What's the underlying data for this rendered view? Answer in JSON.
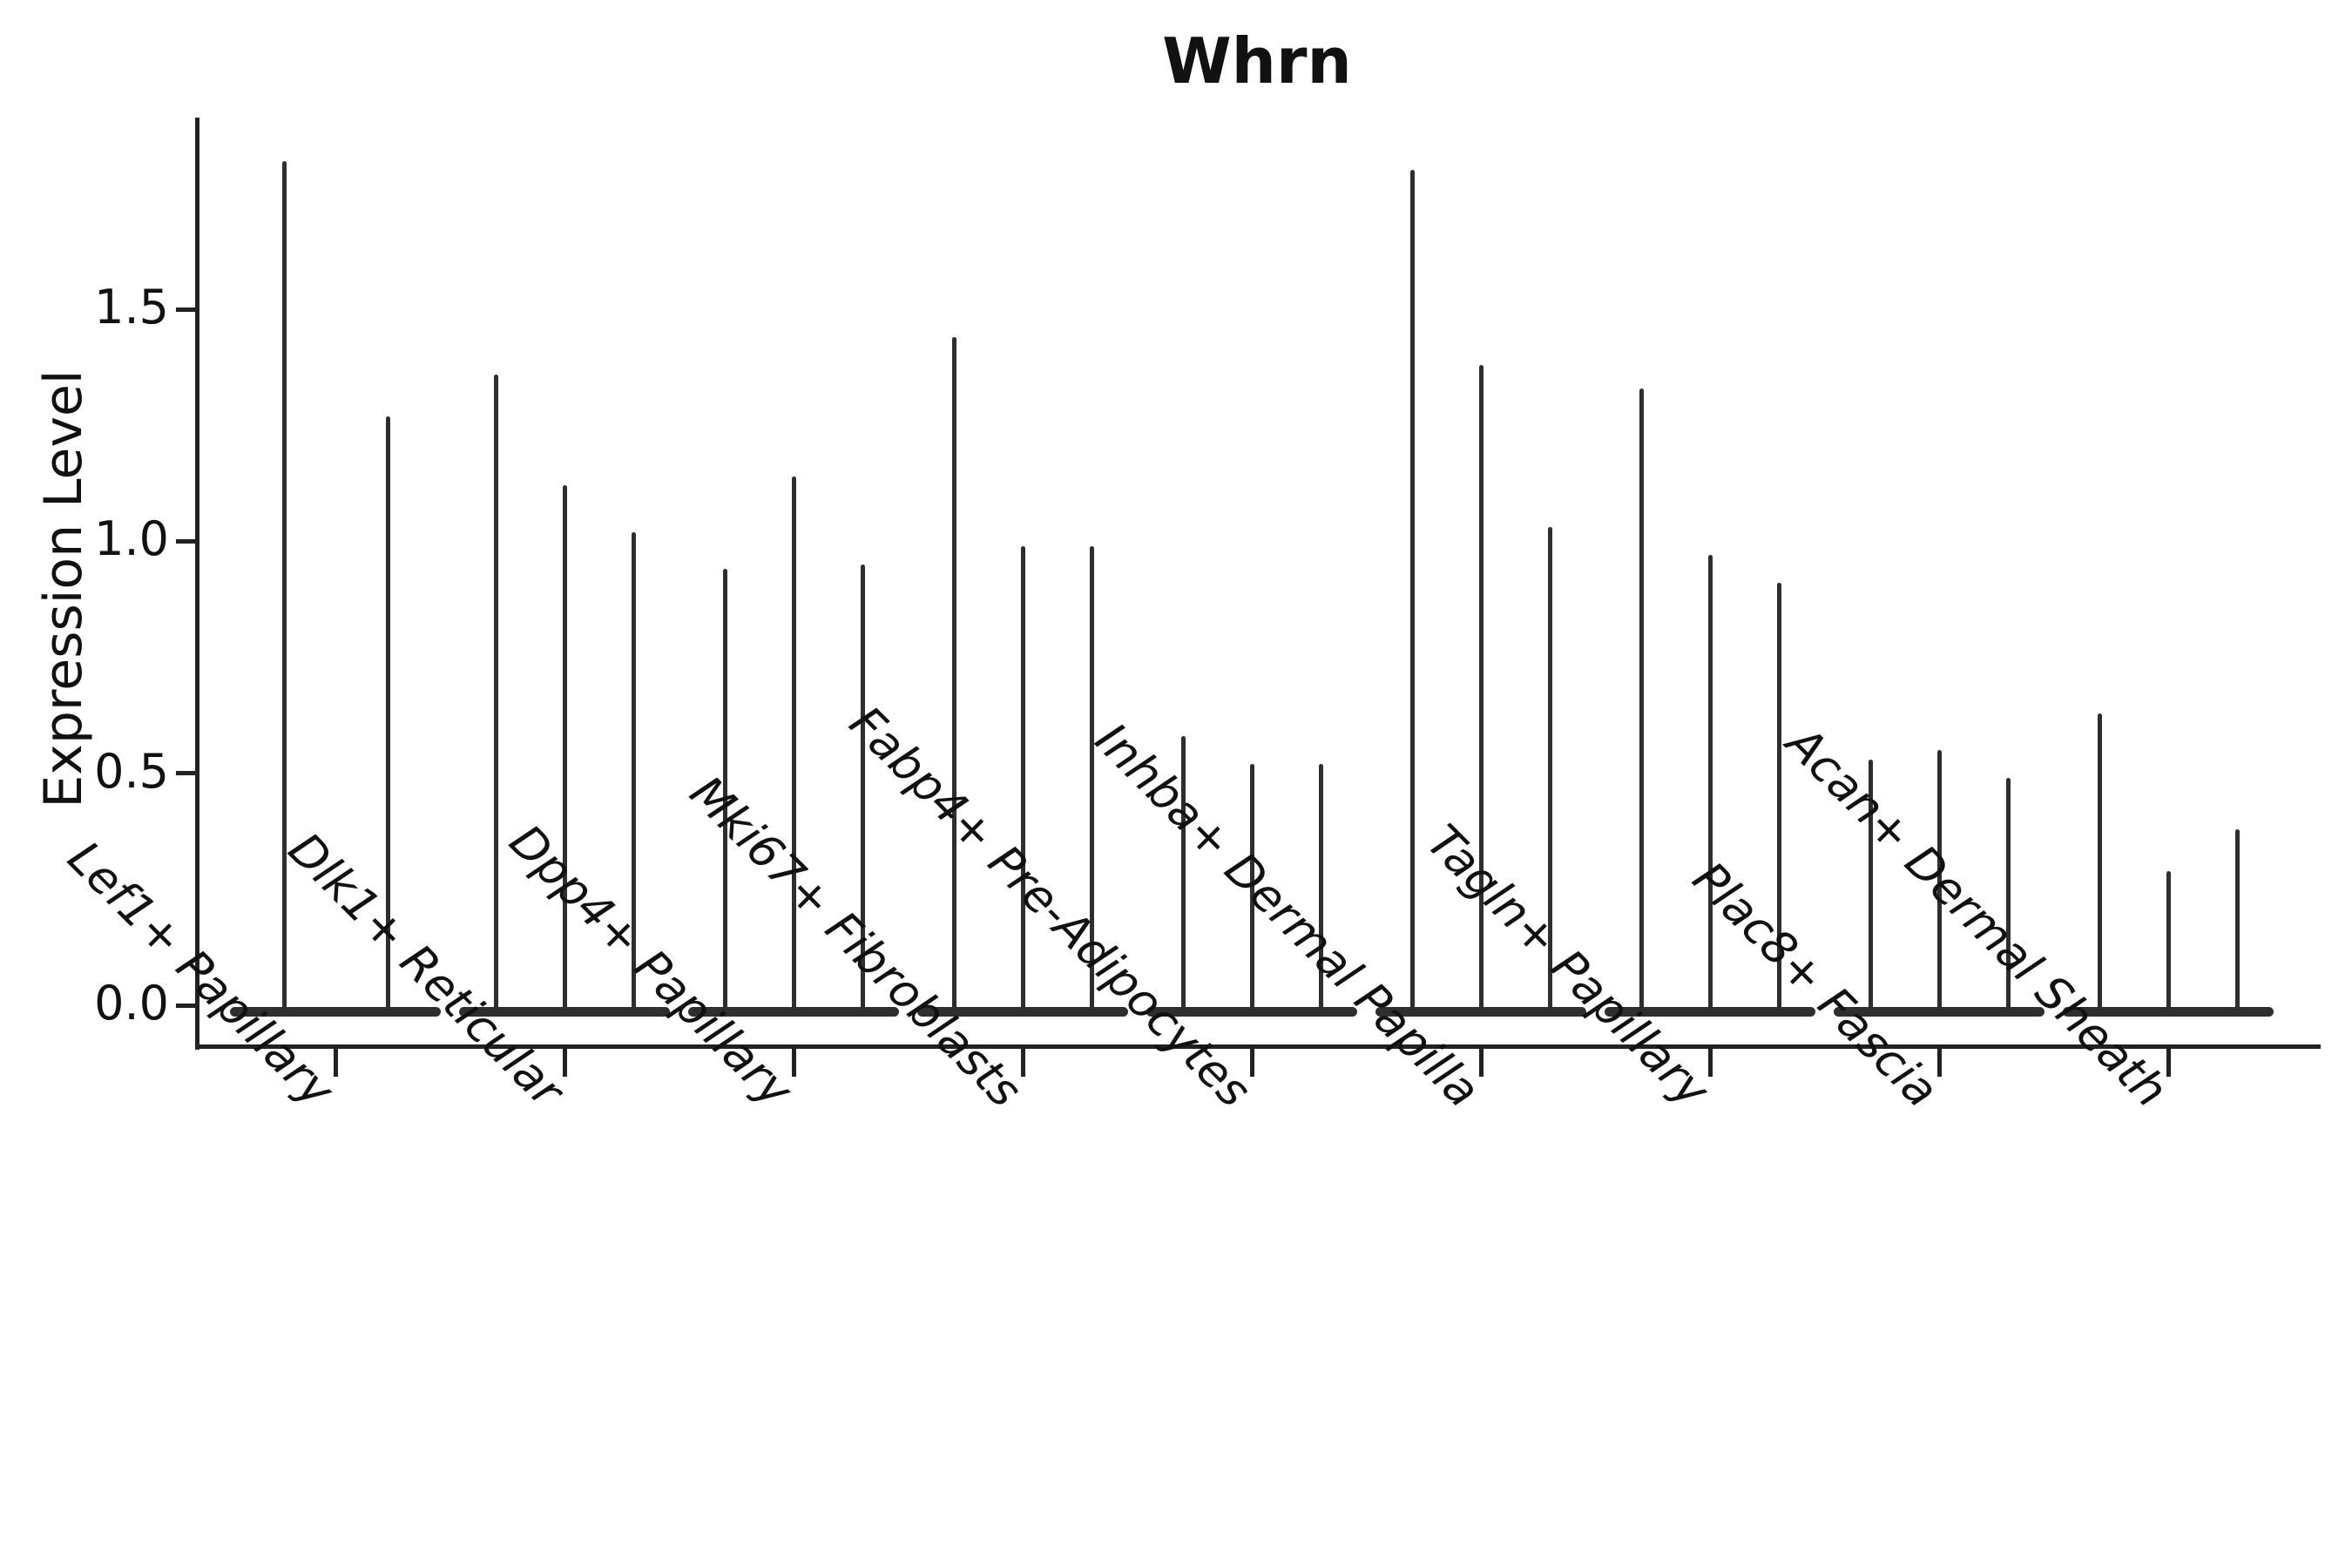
{
  "title": "Whrn",
  "y_axis_label": "Expression Level",
  "colors": {
    "background": "#ffffff",
    "line": "#2e2e2e",
    "text": "#111111"
  },
  "chart_data": {
    "type": "violin",
    "title": "Whrn",
    "xlabel": "",
    "ylabel": "Expression Level",
    "ylim": [
      -0.086,
      1.913
    ],
    "grid": false,
    "legend": "none",
    "ytick_values": [
      0.0,
      0.5,
      1.0,
      1.5
    ],
    "ytick_labels": [
      "0.0",
      "0.5",
      "1.0",
      "1.5"
    ],
    "categories": [
      "Lef1+ Papillary",
      "Dlk1+ Reticular",
      "Dpp4+ Papillary",
      "Mki67+ Fibroblasts",
      "Fabp4+ Pre-Adipocytes",
      "Inhba+ Dermal Papilla",
      "Tagln+ Papillary",
      "Plac8+ Fascia",
      "Acan+ Dermal Sheath"
    ],
    "violins": [
      {
        "category": "Lef1+ Papillary",
        "max_expression": [
          1.82,
          1.27
        ]
      },
      {
        "category": "Dlk1+ Reticular",
        "max_expression": [
          1.36,
          1.12,
          1.02
        ]
      },
      {
        "category": "Dpp4+ Papillary",
        "max_expression": [
          0.94,
          1.14,
          0.95
        ]
      },
      {
        "category": "Mki67+ Fibroblasts",
        "max_expression": [
          1.44,
          0.99,
          0.99
        ]
      },
      {
        "category": "Fabp4+ Pre-Adipocytes",
        "max_expression": [
          0.58,
          0.52,
          0.52
        ]
      },
      {
        "category": "Inhba+ Dermal Papilla",
        "max_expression": [
          1.8,
          1.38,
          1.03
        ]
      },
      {
        "category": "Tagln+ Papillary",
        "max_expression": [
          1.33,
          0.97,
          0.91
        ]
      },
      {
        "category": "Plac8+ Fascia",
        "max_expression": [
          0.53,
          0.55,
          0.49
        ]
      },
      {
        "category": "Acan+ Dermal Sheath",
        "max_expression": [
          0.63,
          0.29,
          0.38
        ]
      }
    ],
    "baseline_value": 0.0
  }
}
